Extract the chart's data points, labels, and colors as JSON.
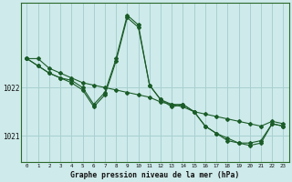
{
  "xlabel": "Graphe pression niveau de la mer (hPa)",
  "background_color": "#ceeaea",
  "grid_color": "#a8d0d0",
  "line_color": "#1a5c28",
  "marker_color": "#1a5c28",
  "ylim_min": 1020.45,
  "ylim_max": 1023.75,
  "yticks": [
    1021,
    1022
  ],
  "xticks": [
    0,
    1,
    2,
    3,
    4,
    5,
    6,
    7,
    8,
    9,
    10,
    11,
    12,
    13,
    14,
    15,
    16,
    17,
    18,
    19,
    20,
    21,
    22,
    23
  ],
  "series1_x": [
    0,
    1,
    2,
    3,
    4,
    5,
    6,
    7,
    8,
    9,
    10,
    11,
    12,
    13,
    14,
    15,
    16,
    17,
    18,
    19,
    20,
    21,
    22,
    23
  ],
  "series1_y": [
    1022.6,
    1022.6,
    1022.4,
    1022.3,
    1022.2,
    1022.1,
    1022.05,
    1022.0,
    1021.95,
    1021.9,
    1021.85,
    1021.8,
    1021.7,
    1021.65,
    1021.6,
    1021.5,
    1021.45,
    1021.4,
    1021.35,
    1021.3,
    1021.25,
    1021.2,
    1021.3,
    1021.25
  ],
  "series2_x": [
    0,
    1,
    2,
    3,
    4,
    5,
    6,
    7,
    8,
    9,
    10,
    11,
    12,
    13,
    14,
    15,
    16,
    17,
    18,
    19,
    20,
    21,
    22,
    23
  ],
  "series2_y": [
    1022.6,
    1022.45,
    1022.3,
    1022.2,
    1022.15,
    1022.0,
    1021.65,
    1021.9,
    1022.6,
    1023.5,
    1023.3,
    1022.05,
    1021.75,
    1021.65,
    1021.65,
    1021.5,
    1021.2,
    1021.05,
    1020.95,
    1020.85,
    1020.85,
    1020.9,
    1021.25,
    1021.2
  ],
  "series3_x": [
    0,
    1,
    2,
    3,
    4,
    5,
    6,
    7,
    8,
    9,
    10,
    11,
    12,
    13,
    14,
    15,
    16,
    17,
    18,
    19,
    20,
    21,
    22,
    23
  ],
  "series3_y": [
    1022.6,
    1022.45,
    1022.3,
    1022.2,
    1022.1,
    1021.95,
    1021.6,
    1021.85,
    1022.55,
    1023.45,
    1023.25,
    1022.05,
    1021.75,
    1021.6,
    1021.65,
    1021.5,
    1021.2,
    1021.05,
    1020.9,
    1020.85,
    1020.8,
    1020.85,
    1021.25,
    1021.2
  ]
}
